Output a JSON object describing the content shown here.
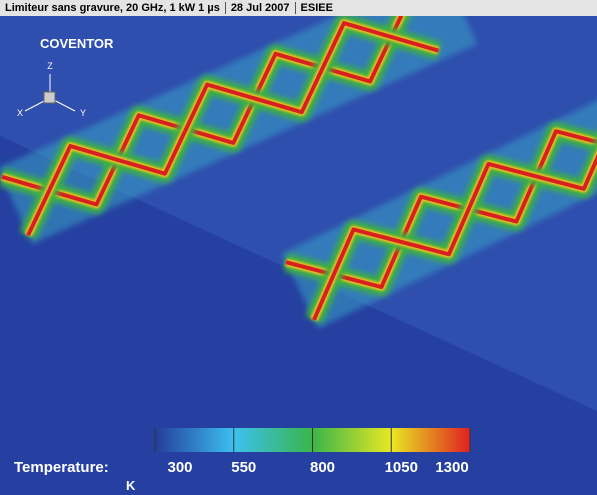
{
  "header": {
    "title": "Limiteur sans gravure, 20 GHz, 1 kW 1 µs",
    "date": "28 Jul 2007",
    "org": "ESIEE"
  },
  "brand": "COVENTOR",
  "axes_triad": {
    "z": "Z",
    "x": "X",
    "y": "Y"
  },
  "colorbar": {
    "label": "Temperature:",
    "unit": "K",
    "lim": [
      300,
      1300
    ],
    "ticks": [
      300,
      550,
      800,
      1050,
      1300
    ]
  }
}
